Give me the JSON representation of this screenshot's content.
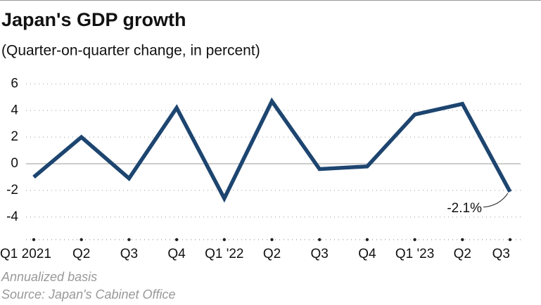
{
  "chart_data": {
    "type": "line",
    "title": "Japan's GDP growth",
    "subtitle": "(Quarter-on-quarter change, in percent)",
    "categories": [
      "Q1 2021",
      "Q2",
      "Q3",
      "Q4",
      "Q1 '22",
      "Q2",
      "Q3",
      "Q4",
      "Q1 '23",
      "Q2",
      "Q3"
    ],
    "values": [
      -1.0,
      2.0,
      -1.1,
      4.2,
      -2.6,
      4.7,
      -0.4,
      -0.2,
      3.7,
      4.5,
      -2.1
    ],
    "value_labels": [
      null,
      null,
      null,
      null,
      null,
      null,
      null,
      null,
      null,
      null,
      "-2.1%"
    ],
    "color": "#1d4570",
    "ylim": [
      -5.7,
      6.6
    ],
    "yticks": [
      -4,
      -2,
      0,
      2,
      4,
      6
    ],
    "grid": true,
    "notes": [
      "Annualized basis",
      "Source: Japan's Cabinet Office"
    ]
  }
}
